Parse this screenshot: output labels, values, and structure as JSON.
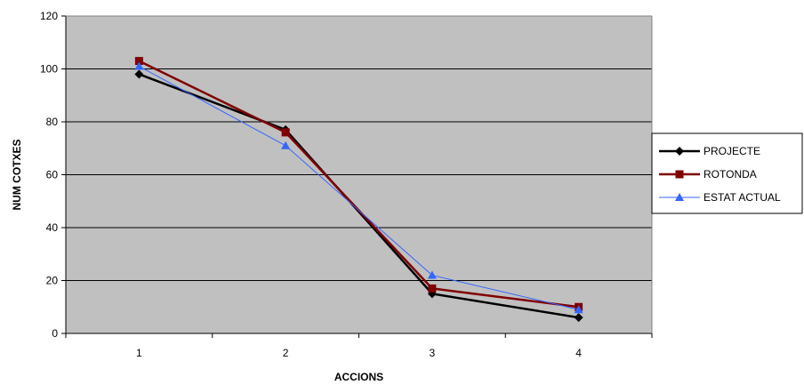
{
  "chart_data": {
    "type": "line",
    "xlabel": "ACCIONS",
    "ylabel": "NUM COTXES",
    "categories": [
      "1",
      "2",
      "3",
      "4"
    ],
    "ylim": [
      0,
      120
    ],
    "yticks": [
      0,
      20,
      40,
      60,
      80,
      100,
      120
    ],
    "grid": true,
    "legend": "right",
    "plot_background": "#c0c0c0",
    "series": [
      {
        "name": "PROJECTE",
        "values": [
          98,
          77,
          15,
          6
        ],
        "color": "#000000",
        "marker": "diamond",
        "stroke_width": 2.5
      },
      {
        "name": "ROTONDA",
        "values": [
          103,
          76,
          17,
          10
        ],
        "color": "#800000",
        "marker": "square",
        "stroke_width": 2.5
      },
      {
        "name": "ESTAT ACTUAL",
        "values": [
          101,
          71,
          22,
          9
        ],
        "color": "#3366ff",
        "marker": "triangle",
        "stroke_width": 1
      }
    ]
  }
}
